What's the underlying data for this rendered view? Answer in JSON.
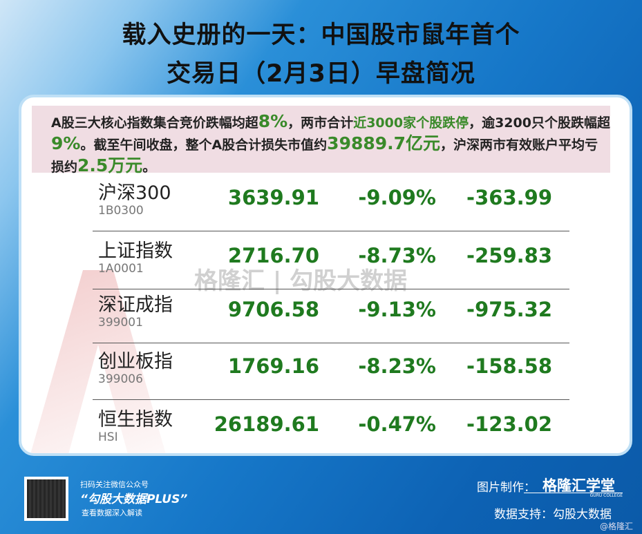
{
  "title": {
    "line1": "载入史册的一天：中国股市鼠年首个",
    "line2": "交易日（2月3日）早盘简况"
  },
  "summary": {
    "s1": "A股三大核心指数集合竞价跌幅均超",
    "s2": "8%",
    "s3": "，两市合计",
    "s4": "近3000家个股跌停",
    "s5": "，逾3200只个股跌幅超",
    "s6": "9%",
    "s7": "。截至午间收盘，整个A股合计损失市值约",
    "s8": "39889.7亿元",
    "s9": "，沪深两市有效账户平均亏损约",
    "s10": "2.5万元",
    "s11": "。"
  },
  "indices": [
    {
      "name": "沪深300",
      "code": "1B0300",
      "price": "3639.91",
      "pct": "-9.09%",
      "change": "-363.99"
    },
    {
      "name": "上证指数",
      "code": "1A0001",
      "price": "2716.70",
      "pct": "-8.73%",
      "change": "-259.83"
    },
    {
      "name": "深证成指",
      "code": "399001",
      "price": "9706.58",
      "pct": "-9.13%",
      "change": "-975.32"
    },
    {
      "name": "创业板指",
      "code": "399006",
      "price": "1769.16",
      "pct": "-8.23%",
      "change": "-158.58"
    },
    {
      "name": "恒生指数",
      "code": "HSI",
      "price": "26189.61",
      "pct": "-0.47%",
      "change": "-123.02"
    }
  ],
  "watermark": "格隆汇 | 勾股大数据",
  "footer": {
    "scan": "扫码关注微信公众号",
    "account": "“勾股大数据PLUS”",
    "read": "查看数据深入解读",
    "made_by": "图片制作：",
    "brand": "格隆汇学堂",
    "brand_sub": "GURU COLLEGE",
    "data_support": "数据支持：勾股大数据",
    "handle": "@格隆汇"
  },
  "colors": {
    "value_green": "#1f7a1f",
    "summary_bg": "#f0dde3"
  }
}
